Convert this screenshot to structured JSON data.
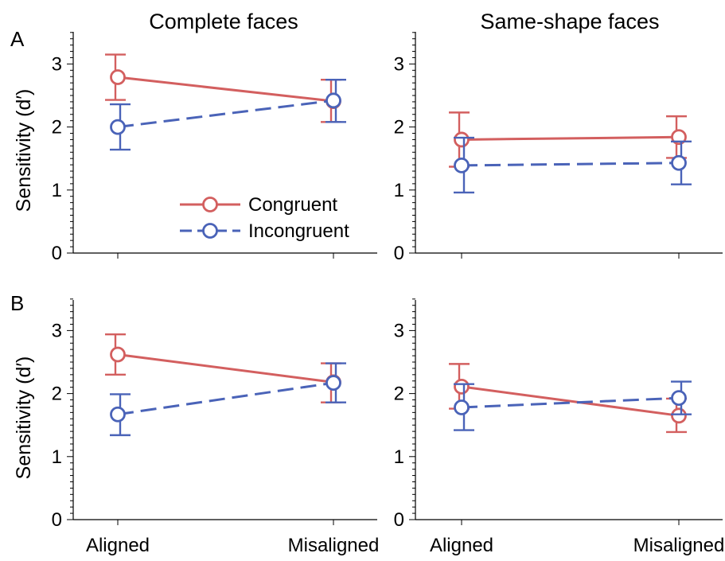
{
  "colors": {
    "congruent": "#d35f5f",
    "incongruent": "#4a63b8",
    "axis": "#000000"
  },
  "column_titles": [
    "Complete faces",
    "Same-shape faces"
  ],
  "row_letters": [
    "A",
    "B"
  ],
  "legend": {
    "congruent": "Congruent",
    "incongruent": "Incongruent"
  },
  "chart_data": [
    {
      "type": "line",
      "panel": "A",
      "column_title": "Complete faces",
      "categories": [
        "Aligned",
        "Misaligned"
      ],
      "ylabel": "Sensitivity (d′)",
      "ylim": [
        0,
        3.5
      ],
      "yticks": [
        0,
        1,
        2,
        3
      ],
      "series": [
        {
          "name": "Congruent",
          "style": "solid",
          "values": [
            2.79,
            2.41
          ],
          "err_low": [
            2.43,
            2.08
          ],
          "err_high": [
            3.15,
            2.75
          ]
        },
        {
          "name": "Incongruent",
          "style": "dashed",
          "values": [
            2.0,
            2.42
          ],
          "err_low": [
            1.64,
            2.08
          ],
          "err_high": [
            2.36,
            2.75
          ]
        }
      ],
      "legend_position": "lower-right"
    },
    {
      "type": "line",
      "panel": "A",
      "column_title": "Same-shape faces",
      "categories": [
        "Aligned",
        "Misaligned"
      ],
      "ylabel": "",
      "ylim": [
        0,
        3.5
      ],
      "yticks": [
        0,
        1,
        2,
        3
      ],
      "series": [
        {
          "name": "Congruent",
          "style": "solid",
          "values": [
            1.8,
            1.84
          ],
          "err_low": [
            1.37,
            1.51
          ],
          "err_high": [
            2.23,
            2.17
          ]
        },
        {
          "name": "Incongruent",
          "style": "dashed",
          "values": [
            1.39,
            1.43
          ],
          "err_low": [
            0.96,
            1.09
          ],
          "err_high": [
            1.83,
            1.77
          ]
        }
      ]
    },
    {
      "type": "line",
      "panel": "B",
      "column_title": "Complete faces",
      "categories": [
        "Aligned",
        "Misaligned"
      ],
      "ylabel": "Sensitivity (d′)",
      "ylim": [
        0,
        3.5
      ],
      "yticks": [
        0,
        1,
        2,
        3
      ],
      "series": [
        {
          "name": "Congruent",
          "style": "solid",
          "values": [
            2.62,
            2.18
          ],
          "err_low": [
            2.3,
            1.86
          ],
          "err_high": [
            2.94,
            2.48
          ]
        },
        {
          "name": "Incongruent",
          "style": "dashed",
          "values": [
            1.67,
            2.17
          ],
          "err_low": [
            1.34,
            1.86
          ],
          "err_high": [
            1.99,
            2.48
          ]
        }
      ]
    },
    {
      "type": "line",
      "panel": "B",
      "column_title": "Same-shape faces",
      "categories": [
        "Aligned",
        "Misaligned"
      ],
      "ylabel": "",
      "ylim": [
        0,
        3.5
      ],
      "yticks": [
        0,
        1,
        2,
        3
      ],
      "series": [
        {
          "name": "Congruent",
          "style": "solid",
          "values": [
            2.11,
            1.65
          ],
          "err_low": [
            1.76,
            1.39
          ],
          "err_high": [
            2.47,
            1.92
          ]
        },
        {
          "name": "Incongruent",
          "style": "dashed",
          "values": [
            1.78,
            1.93
          ],
          "err_low": [
            1.42,
            1.67
          ],
          "err_high": [
            2.15,
            2.19
          ]
        }
      ]
    }
  ]
}
